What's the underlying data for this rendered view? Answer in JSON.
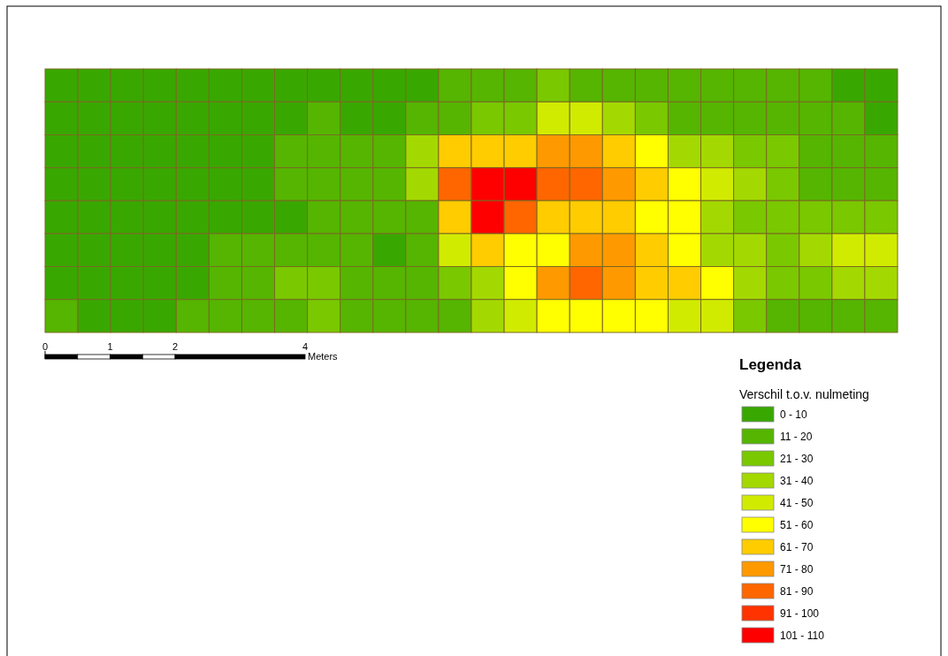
{
  "chart_data": {
    "type": "heatmap",
    "title": "Legenda",
    "legend_title": "Verschil t.o.v. nulmeting",
    "categories": [
      null,
      null,
      null,
      null,
      null,
      null,
      null,
      null,
      null,
      null,
      null,
      null,
      null,
      null,
      null,
      null,
      null,
      null,
      null,
      null,
      null,
      null,
      null,
      null,
      null,
      null
    ],
    "y_categories": [
      null,
      null,
      null,
      null,
      null,
      null,
      null,
      null
    ],
    "cticks": [
      {
        "value": 0,
        "label": "0 - 10"
      },
      {
        "value": 11,
        "label": "11 - 20"
      },
      {
        "value": 21,
        "label": "21 - 30"
      },
      {
        "value": 31,
        "label": "31 - 40"
      },
      {
        "value": 41,
        "label": "41 - 50"
      },
      {
        "value": 51,
        "label": "51 - 60"
      },
      {
        "value": 61,
        "label": "61 - 70"
      },
      {
        "value": 71,
        "label": "71 - 80"
      },
      {
        "value": 81,
        "label": "81 - 90"
      },
      {
        "value": 91,
        "label": "91 - 100"
      },
      {
        "value": 101,
        "label": "101 - 110"
      }
    ],
    "colors": [
      "#38a800",
      "#55b500",
      "#7ac800",
      "#a3d900",
      "#d1eb00",
      "#ffff00",
      "#ffcc00",
      "#ff9900",
      "#ff6600",
      "#ff3300",
      "#ff0000"
    ],
    "cells": [
      [
        5,
        5,
        5,
        5,
        5,
        5,
        5,
        5,
        5,
        5,
        5,
        5,
        15,
        15,
        15,
        25,
        15,
        15,
        15,
        15,
        15,
        15,
        15,
        15,
        5,
        5
      ],
      [
        5,
        5,
        5,
        5,
        5,
        5,
        5,
        5,
        15,
        5,
        5,
        15,
        15,
        25,
        25,
        45,
        45,
        35,
        25,
        15,
        15,
        15,
        15,
        15,
        15,
        5
      ],
      [
        5,
        5,
        5,
        5,
        5,
        5,
        5,
        15,
        15,
        15,
        15,
        35,
        65,
        65,
        65,
        75,
        75,
        65,
        55,
        35,
        35,
        25,
        25,
        15,
        15,
        15
      ],
      [
        5,
        5,
        5,
        5,
        5,
        5,
        5,
        15,
        15,
        15,
        15,
        35,
        85,
        105,
        105,
        85,
        85,
        75,
        65,
        55,
        45,
        35,
        25,
        15,
        15,
        15
      ],
      [
        5,
        5,
        5,
        5,
        5,
        5,
        5,
        5,
        15,
        15,
        15,
        15,
        65,
        105,
        85,
        65,
        65,
        65,
        55,
        55,
        35,
        25,
        25,
        25,
        25,
        25
      ],
      [
        5,
        5,
        5,
        5,
        5,
        15,
        15,
        15,
        15,
        15,
        5,
        15,
        45,
        65,
        55,
        55,
        75,
        75,
        65,
        55,
        35,
        35,
        25,
        35,
        45,
        45
      ],
      [
        5,
        5,
        5,
        5,
        5,
        15,
        15,
        25,
        25,
        15,
        15,
        15,
        25,
        35,
        55,
        75,
        85,
        75,
        65,
        65,
        55,
        35,
        25,
        25,
        35,
        35
      ],
      [
        15,
        5,
        5,
        5,
        15,
        15,
        15,
        15,
        25,
        15,
        15,
        15,
        15,
        35,
        45,
        55,
        55,
        55,
        55,
        45,
        45,
        25,
        15,
        15,
        15,
        15
      ]
    ],
    "annotations": [
      "0",
      "1",
      "2",
      "4",
      "Meters"
    ]
  }
}
